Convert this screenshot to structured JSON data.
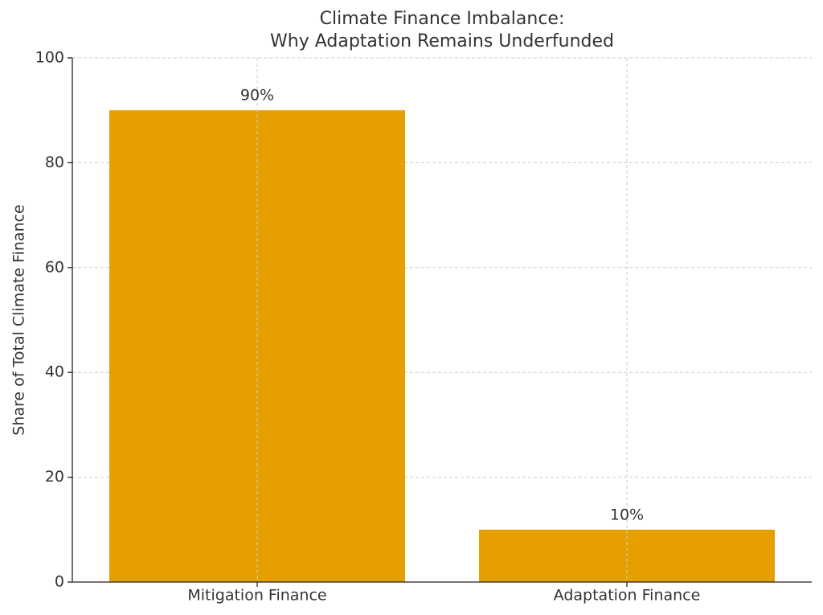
{
  "chart_data": {
    "type": "bar",
    "title": [
      "Climate Finance Imbalance:",
      "Why Adaptation Remains Underfunded"
    ],
    "y_label": "Share of Total Climate Finance",
    "categories": [
      "Mitigation Finance",
      "Adaptation Finance"
    ],
    "values": [
      90,
      10
    ],
    "value_labels": [
      "90%",
      "10%"
    ],
    "color": "#e5a000",
    "ylim": [
      0,
      100
    ],
    "yticks": [
      0,
      20,
      40,
      60,
      80,
      100
    ],
    "grid": true
  }
}
